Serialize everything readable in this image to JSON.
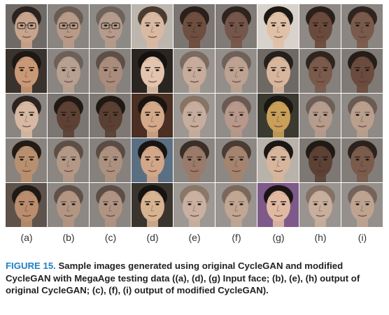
{
  "column_labels": [
    "(a)",
    "(b)",
    "(c)",
    "(d)",
    "(e)",
    "(f)",
    "(g)",
    "(h)",
    "(i)"
  ],
  "caption": {
    "label": "FIGURE 15.",
    "text": " Sample images generated using original CycleGAN and modified CycleGAN with MegaAge testing data ((a), (d), (g) Input face; (b), (e), (h) output of original CycleGAN; (c), (f), (i) output of modified CycleGAN)."
  },
  "tiles": [
    [
      {
        "bg": "#6f6a66",
        "skin": "#c9a48c",
        "hair": "#2a2320",
        "glasses": true
      },
      {
        "bg": "#8a8580",
        "skin": "#b89a88",
        "hair": "#6a5c55",
        "glasses": true
      },
      {
        "bg": "#8d8a86",
        "skin": "#b59b8b",
        "hair": "#6e625c",
        "glasses": true
      },
      {
        "bg": "#bdb6ae",
        "skin": "#d9b9a2",
        "hair": "#4a3b30"
      },
      {
        "bg": "#7c7672",
        "skin": "#6e4e3e",
        "hair": "#2a1f1a"
      },
      {
        "bg": "#807b77",
        "skin": "#76564a",
        "hair": "#2d231f"
      },
      {
        "bg": "#d8d2cc",
        "skin": "#e0c1a8",
        "hair": "#1d1814"
      },
      {
        "bg": "#8e8985",
        "skin": "#6a4a3c",
        "hair": "#2a201b"
      },
      {
        "bg": "#8b8682",
        "skin": "#7a5a4b",
        "hair": "#2f241f"
      }
    ],
    [
      {
        "bg": "#3a322d",
        "skin": "#c99876",
        "hair": "#1e1814"
      },
      {
        "bg": "#8a8580",
        "skin": "#b7a08f",
        "hair": "#6d6058"
      },
      {
        "bg": "#86817c",
        "skin": "#a98c7b",
        "hair": "#5d4f47"
      },
      {
        "bg": "#2b2522",
        "skin": "#e3c4ae",
        "hair": "#141110"
      },
      {
        "bg": "#9a948f",
        "skin": "#c7ac9b",
        "hair": "#7a6a60"
      },
      {
        "bg": "#938e89",
        "skin": "#bda291",
        "hair": "#6f6159"
      },
      {
        "bg": "#6f6964",
        "skin": "#d8b69d",
        "hair": "#26201c"
      },
      {
        "bg": "#85807b",
        "skin": "#7a5a4b",
        "hair": "#2f251f"
      },
      {
        "bg": "#7f7a76",
        "skin": "#6b4b3d",
        "hair": "#261d18"
      }
    ],
    [
      {
        "bg": "#8a8581",
        "skin": "#d7b8a2",
        "hair": "#2b2420"
      },
      {
        "bg": "#7b7671",
        "skin": "#5c4134",
        "hair": "#211914"
      },
      {
        "bg": "#7d7873",
        "skin": "#5a3f33",
        "hair": "#1f1813"
      },
      {
        "bg": "#4a2f22",
        "skin": "#d3a98a",
        "hair": "#1b1410"
      },
      {
        "bg": "#9c9792",
        "skin": "#c6ad9d",
        "hair": "#877464"
      },
      {
        "bg": "#918c88",
        "skin": "#b7988a",
        "hair": "#6b5a52"
      },
      {
        "bg": "#3b3a30",
        "skin": "#c9a05a",
        "hair": "#1a1612"
      },
      {
        "bg": "#8e8984",
        "skin": "#b59c8c",
        "hair": "#6d5f57"
      },
      {
        "bg": "#8f8a85",
        "skin": "#ba9f8d",
        "hair": "#6a5b52"
      }
    ],
    [
      {
        "bg": "#8a837d",
        "skin": "#b9906f",
        "hair": "#221b16"
      },
      {
        "bg": "#8b8681",
        "skin": "#b39886",
        "hair": "#5d4f46"
      },
      {
        "bg": "#86817c",
        "skin": "#ad917f",
        "hair": "#5a4c44"
      },
      {
        "bg": "#5b6f82",
        "skin": "#d2a689",
        "hair": "#191412"
      },
      {
        "bg": "#8a8581",
        "skin": "#9a7a68",
        "hair": "#3b2e27"
      },
      {
        "bg": "#8d8883",
        "skin": "#a4846f",
        "hair": "#4a3b33"
      },
      {
        "bg": "#b9b2aa",
        "skin": "#d6b59c",
        "hair": "#1c1713"
      },
      {
        "bg": "#7d7873",
        "skin": "#5c4134",
        "hair": "#211914"
      },
      {
        "bg": "#827d78",
        "skin": "#7b5b4b",
        "hair": "#2c221d"
      }
    ],
    [
      {
        "bg": "#5e524a",
        "skin": "#b98d6d",
        "hair": "#1f1915"
      },
      {
        "bg": "#8d8883",
        "skin": "#b29683",
        "hair": "#5f5048"
      },
      {
        "bg": "#8b8681",
        "skin": "#b09483",
        "hair": "#5c4e46"
      },
      {
        "bg": "#3a342f",
        "skin": "#d7b391",
        "hair": "#171311"
      },
      {
        "bg": "#9d9893",
        "skin": "#c9b0a0",
        "hair": "#8a7767"
      },
      {
        "bg": "#99948f",
        "skin": "#c1a694",
        "hair": "#7a685c"
      },
      {
        "bg": "#7d5a8a",
        "skin": "#e0b9a2",
        "hair": "#1a1513"
      },
      {
        "bg": "#99948f",
        "skin": "#c8ae9c",
        "hair": "#847164"
      },
      {
        "bg": "#95908b",
        "skin": "#bfa391",
        "hair": "#74635a"
      }
    ]
  ]
}
